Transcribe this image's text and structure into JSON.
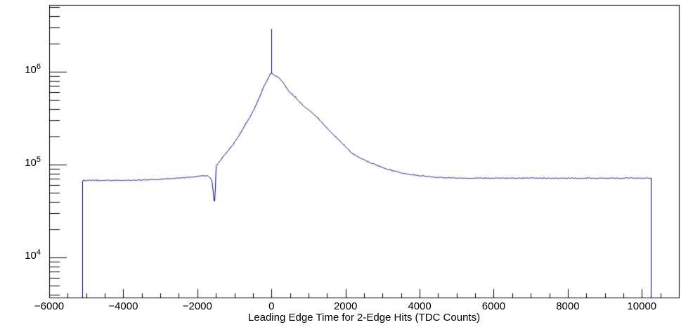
{
  "page": {
    "background": "#ffffff"
  },
  "chart_data": {
    "type": "line",
    "title": "",
    "xlabel": "Leading Edge Time for 2-Edge Hits (TDC Counts)",
    "ylabel": "",
    "legend": false,
    "grid": false,
    "frame_color": "#000000",
    "line_color": "#00008b",
    "x_axis": {
      "min": -6000,
      "max": 11000,
      "major_tick_step": 2000,
      "minor_tick_step": 500,
      "major_tick_values": [
        -6000,
        -4000,
        -2000,
        0,
        2000,
        4000,
        6000,
        8000,
        10000
      ],
      "tick_labels": [
        "−6000",
        "−4000",
        "−2000",
        "0",
        "2000",
        "4000",
        "6000",
        "8000",
        "10000"
      ]
    },
    "y_axis": {
      "scale": "log",
      "min": 3700,
      "max": 5250000,
      "base": "10",
      "exponents": [
        4,
        5,
        6
      ],
      "labeled_values": [
        10000,
        100000,
        1000000
      ]
    },
    "series": [
      {
        "name": "leading_edge_time_2edge_hits",
        "histogram_range": [
          -5100,
          10250
        ],
        "left_plateau_counts": 67000,
        "right_plateau_counts": 70800,
        "peak": {
          "x": 0,
          "counts": 966000
        },
        "spike": {
          "x": 0,
          "top_counts": 2900000
        },
        "dip": {
          "x": -1551,
          "counts": 36300
        },
        "points": [
          [
            -5100,
            67000
          ],
          [
            -4200,
            67000
          ],
          [
            -3600,
            67600
          ],
          [
            -3000,
            68900
          ],
          [
            -2600,
            70600
          ],
          [
            -2200,
            72800
          ],
          [
            -1959,
            74300
          ],
          [
            -1826,
            75700
          ],
          [
            -1730,
            74800
          ],
          [
            -1660,
            71900
          ],
          [
            -1615,
            66000
          ],
          [
            -1585,
            53700
          ],
          [
            -1565,
            41700
          ],
          [
            -1551,
            36300
          ],
          [
            -1538,
            41700
          ],
          [
            -1522,
            55000
          ],
          [
            -1510,
            72400
          ],
          [
            -1504,
            94400
          ],
          [
            -1440,
            103500
          ],
          [
            -1313,
            120000
          ],
          [
            -1180,
            141000
          ],
          [
            -1067,
            158500
          ],
          [
            -900,
            199500
          ],
          [
            -744,
            257000
          ],
          [
            -600,
            316000
          ],
          [
            -497,
            380000
          ],
          [
            -400,
            457000
          ],
          [
            -308,
            562000
          ],
          [
            -200,
            708000
          ],
          [
            -156,
            759000
          ],
          [
            -100,
            841000
          ],
          [
            -42,
            933000
          ],
          [
            0,
            966000
          ],
          [
            60,
            912000
          ],
          [
            140,
            881000
          ],
          [
            210,
            851000
          ],
          [
            320,
            750000
          ],
          [
            451,
            617000
          ],
          [
            650,
            520000
          ],
          [
            831,
            435000
          ],
          [
            1020,
            380000
          ],
          [
            1210,
            325000
          ],
          [
            1450,
            255000
          ],
          [
            1685,
            205000
          ],
          [
            1920,
            166000
          ],
          [
            2159,
            132000
          ],
          [
            2400,
            116000
          ],
          [
            2633,
            105000
          ],
          [
            2880,
            95500
          ],
          [
            3108,
            89100
          ],
          [
            3350,
            83200
          ],
          [
            3582,
            79400
          ],
          [
            3820,
            76700
          ],
          [
            4057,
            75000
          ],
          [
            4300,
            73300
          ],
          [
            4531,
            72100
          ],
          [
            4800,
            71450
          ],
          [
            5006,
            71100
          ],
          [
            5500,
            70950
          ],
          [
            6500,
            70800
          ],
          [
            8000,
            70800
          ],
          [
            10250,
            70800
          ]
        ]
      }
    ]
  }
}
